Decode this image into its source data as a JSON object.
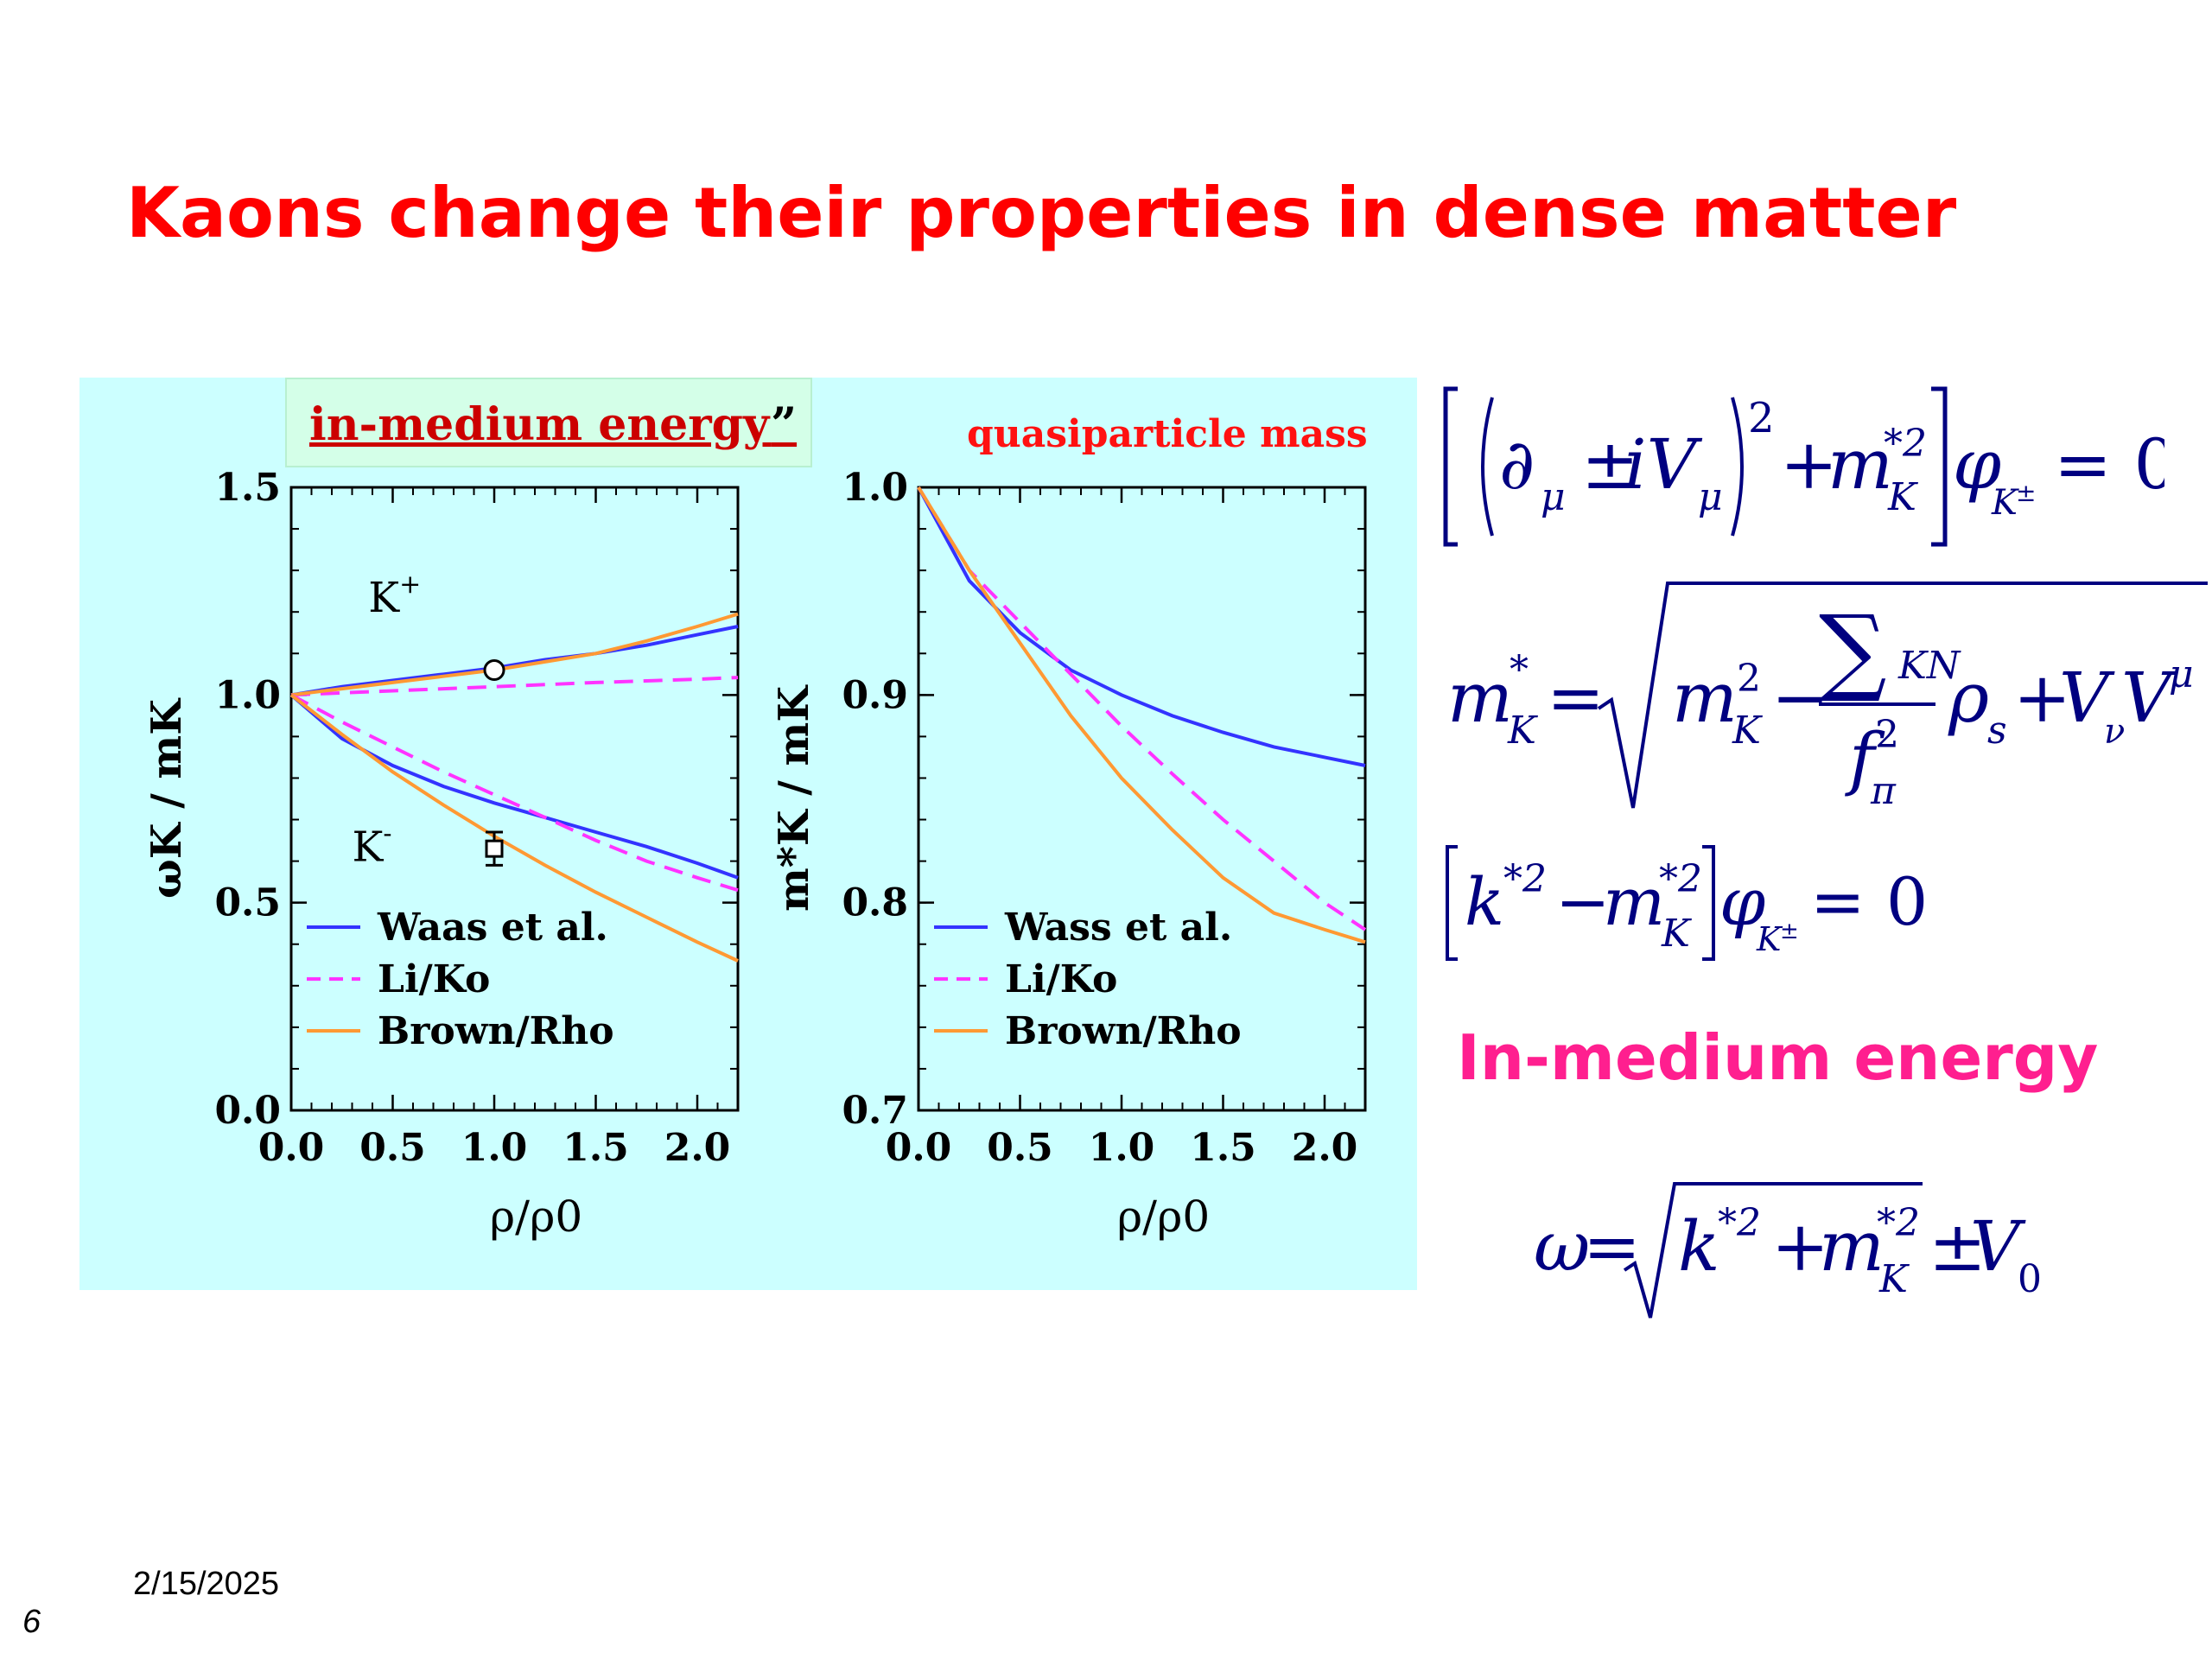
{
  "slide": {
    "title": "Kaons change their properties in dense matter",
    "date": "2/15/2025",
    "number": "6"
  },
  "figure": {
    "label_energy": "in-medium energy",
    "label_quote": "”",
    "label_mass": "quasiparticle mass"
  },
  "equations": {
    "heading": "In-medium energy"
  },
  "colors": {
    "title": "#ff0000",
    "panel_bg": "#ccffff",
    "blue": "#3333ff",
    "magenta": "#ff33ff",
    "orange": "#ff9933",
    "heading": "#ff1f8f",
    "equation": "#000080"
  },
  "chart_data": [
    {
      "type": "line",
      "xlabel": "ρ/ρ0",
      "ylabel": "ωK / mK",
      "xlim": [
        0.0,
        2.2
      ],
      "ylim": [
        0.0,
        1.5
      ],
      "xticks": [
        "0.0",
        "0.5",
        "1.0",
        "1.5",
        "2.0"
      ],
      "yticks": [
        "0.0",
        "0.5",
        "1.0",
        "1.5"
      ],
      "annotations": [
        "K+",
        "K-"
      ],
      "legend": [
        "Waas et al.",
        "Li/Ko",
        "Brown/Rho"
      ],
      "legend_position": "bottom-left",
      "x": [
        0.0,
        0.25,
        0.5,
        0.75,
        1.0,
        1.25,
        1.5,
        1.75,
        2.0,
        2.2
      ],
      "series": [
        {
          "name": "Waas et al.",
          "branch": "K+",
          "style": "solid",
          "color": "blue",
          "values": [
            1.0,
            1.02,
            1.035,
            1.05,
            1.065,
            1.085,
            1.1,
            1.12,
            1.145,
            1.165
          ]
        },
        {
          "name": "Li/Ko",
          "branch": "K+",
          "style": "dashed",
          "color": "magenta",
          "values": [
            1.0,
            1.005,
            1.01,
            1.015,
            1.02,
            1.025,
            1.03,
            1.034,
            1.038,
            1.042
          ]
        },
        {
          "name": "Brown/Rho",
          "branch": "K+",
          "style": "solid",
          "color": "orange",
          "values": [
            1.0,
            1.015,
            1.03,
            1.045,
            1.06,
            1.08,
            1.1,
            1.13,
            1.165,
            1.195
          ]
        },
        {
          "name": "Waas et al.",
          "branch": "K-",
          "style": "solid",
          "color": "blue",
          "values": [
            1.0,
            0.895,
            0.83,
            0.78,
            0.74,
            0.705,
            0.67,
            0.635,
            0.595,
            0.56
          ]
        },
        {
          "name": "Li/Ko",
          "branch": "K-",
          "style": "dashed",
          "color": "magenta",
          "values": [
            1.0,
            0.935,
            0.875,
            0.815,
            0.76,
            0.705,
            0.65,
            0.6,
            0.56,
            0.53
          ]
        },
        {
          "name": "Brown/Rho",
          "branch": "K-",
          "style": "solid",
          "color": "orange",
          "values": [
            1.0,
            0.905,
            0.815,
            0.735,
            0.66,
            0.59,
            0.525,
            0.465,
            0.405,
            0.36
          ]
        }
      ],
      "data_points": [
        {
          "x": 1.0,
          "y": 1.06,
          "marker": "open-circle"
        },
        {
          "x": 1.0,
          "y": 0.63,
          "marker": "open-square",
          "error": 0.04
        }
      ]
    },
    {
      "type": "line",
      "xlabel": "ρ/ρ0",
      "ylabel": "m*K / mK",
      "xlim": [
        0.0,
        2.2
      ],
      "ylim": [
        0.7,
        1.0
      ],
      "xticks": [
        "0.0",
        "0.5",
        "1.0",
        "1.5",
        "2.0"
      ],
      "yticks": [
        "0.7",
        "0.8",
        "0.9",
        "1.0"
      ],
      "legend": [
        "Wass et al.",
        "Li/Ko",
        "Brown/Rho"
      ],
      "legend_position": "bottom-left",
      "x": [
        0.0,
        0.25,
        0.5,
        0.75,
        1.0,
        1.25,
        1.5,
        1.75,
        2.0,
        2.2
      ],
      "series": [
        {
          "name": "Wass et al.",
          "style": "solid",
          "color": "blue",
          "values": [
            1.0,
            0.955,
            0.93,
            0.912,
            0.9,
            0.89,
            0.882,
            0.875,
            0.87,
            0.866
          ]
        },
        {
          "name": "Li/Ko",
          "style": "dashed",
          "color": "magenta",
          "values": [
            1.0,
            0.96,
            0.935,
            0.91,
            0.885,
            0.862,
            0.84,
            0.82,
            0.8,
            0.787
          ]
        },
        {
          "name": "Brown/Rho",
          "style": "solid",
          "color": "orange",
          "values": [
            1.0,
            0.96,
            0.925,
            0.89,
            0.86,
            0.835,
            0.812,
            0.795,
            0.787,
            0.781
          ]
        }
      ]
    }
  ]
}
